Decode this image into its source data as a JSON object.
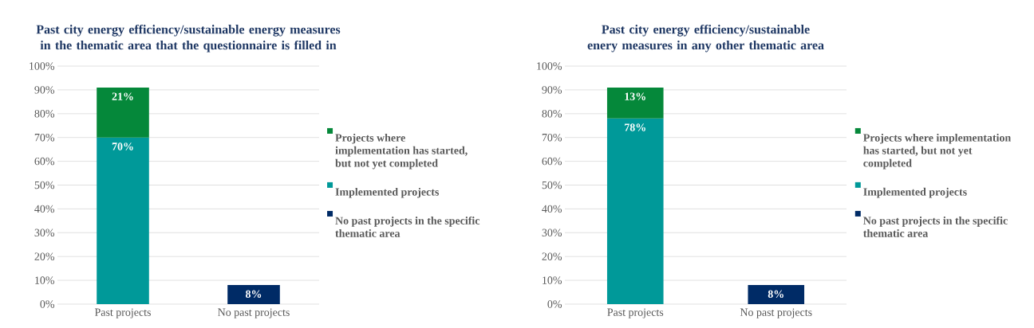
{
  "chart_data": [
    {
      "type": "bar",
      "title": "Past city energy efficiency/sustainable energy measures in the thematic area that the questionnaire is filled in",
      "categories": [
        "Past projects",
        "No past projects"
      ],
      "stacked": true,
      "ylim": [
        0,
        100
      ],
      "yticks": [
        {
          "value": 0,
          "label": "0%"
        },
        {
          "value": 10,
          "label": "10%"
        },
        {
          "value": 20,
          "label": "20%"
        },
        {
          "value": 30,
          "label": "30%"
        },
        {
          "value": 40,
          "label": "40%"
        },
        {
          "value": 50,
          "label": "50%"
        },
        {
          "value": 60,
          "label": "60%"
        },
        {
          "value": 70,
          "label": "70%"
        },
        {
          "value": 80,
          "label": "80%"
        },
        {
          "value": 90,
          "label": "90%"
        },
        {
          "value": 100,
          "label": "100%"
        }
      ],
      "grid": "y",
      "legend": "right",
      "series": [
        {
          "name": "Implemented projects",
          "color": "#009999",
          "values": [
            70,
            null
          ],
          "value_labels": [
            "70%",
            null
          ]
        },
        {
          "name": "Projects where implementation has started, but not yet completed",
          "color": "#05883a",
          "values": [
            21,
            null
          ],
          "value_labels": [
            "21%",
            null
          ]
        },
        {
          "name": "No past projects in the specific thematic area",
          "color": "#002b66",
          "values": [
            null,
            8
          ],
          "value_labels": [
            null,
            "8%"
          ]
        }
      ]
    },
    {
      "type": "bar",
      "title": "Past city energy efficiency/sustainable enery measures in any other thematic area",
      "categories": [
        "Past projects",
        "No past projects"
      ],
      "stacked": true,
      "ylim": [
        0,
        100
      ],
      "yticks": [
        {
          "value": 0,
          "label": "0%"
        },
        {
          "value": 10,
          "label": "10%"
        },
        {
          "value": 20,
          "label": "20%"
        },
        {
          "value": 30,
          "label": "30%"
        },
        {
          "value": 40,
          "label": "40%"
        },
        {
          "value": 50,
          "label": "50%"
        },
        {
          "value": 60,
          "label": "60%"
        },
        {
          "value": 70,
          "label": "70%"
        },
        {
          "value": 80,
          "label": "80%"
        },
        {
          "value": 90,
          "label": "90%"
        },
        {
          "value": 100,
          "label": "100%"
        }
      ],
      "grid": "y",
      "legend": "right",
      "series": [
        {
          "name": "Implemented projects",
          "color": "#009999",
          "values": [
            78,
            null
          ],
          "value_labels": [
            "78%",
            null
          ]
        },
        {
          "name": "Projects where implementation has started, but not yet completed",
          "color": "#05883a",
          "values": [
            13,
            null
          ],
          "value_labels": [
            "13%",
            null
          ]
        },
        {
          "name": "No past projects in the specific thematic area",
          "color": "#002b66",
          "values": [
            null,
            8
          ],
          "value_labels": [
            null,
            "8%"
          ]
        }
      ]
    }
  ]
}
